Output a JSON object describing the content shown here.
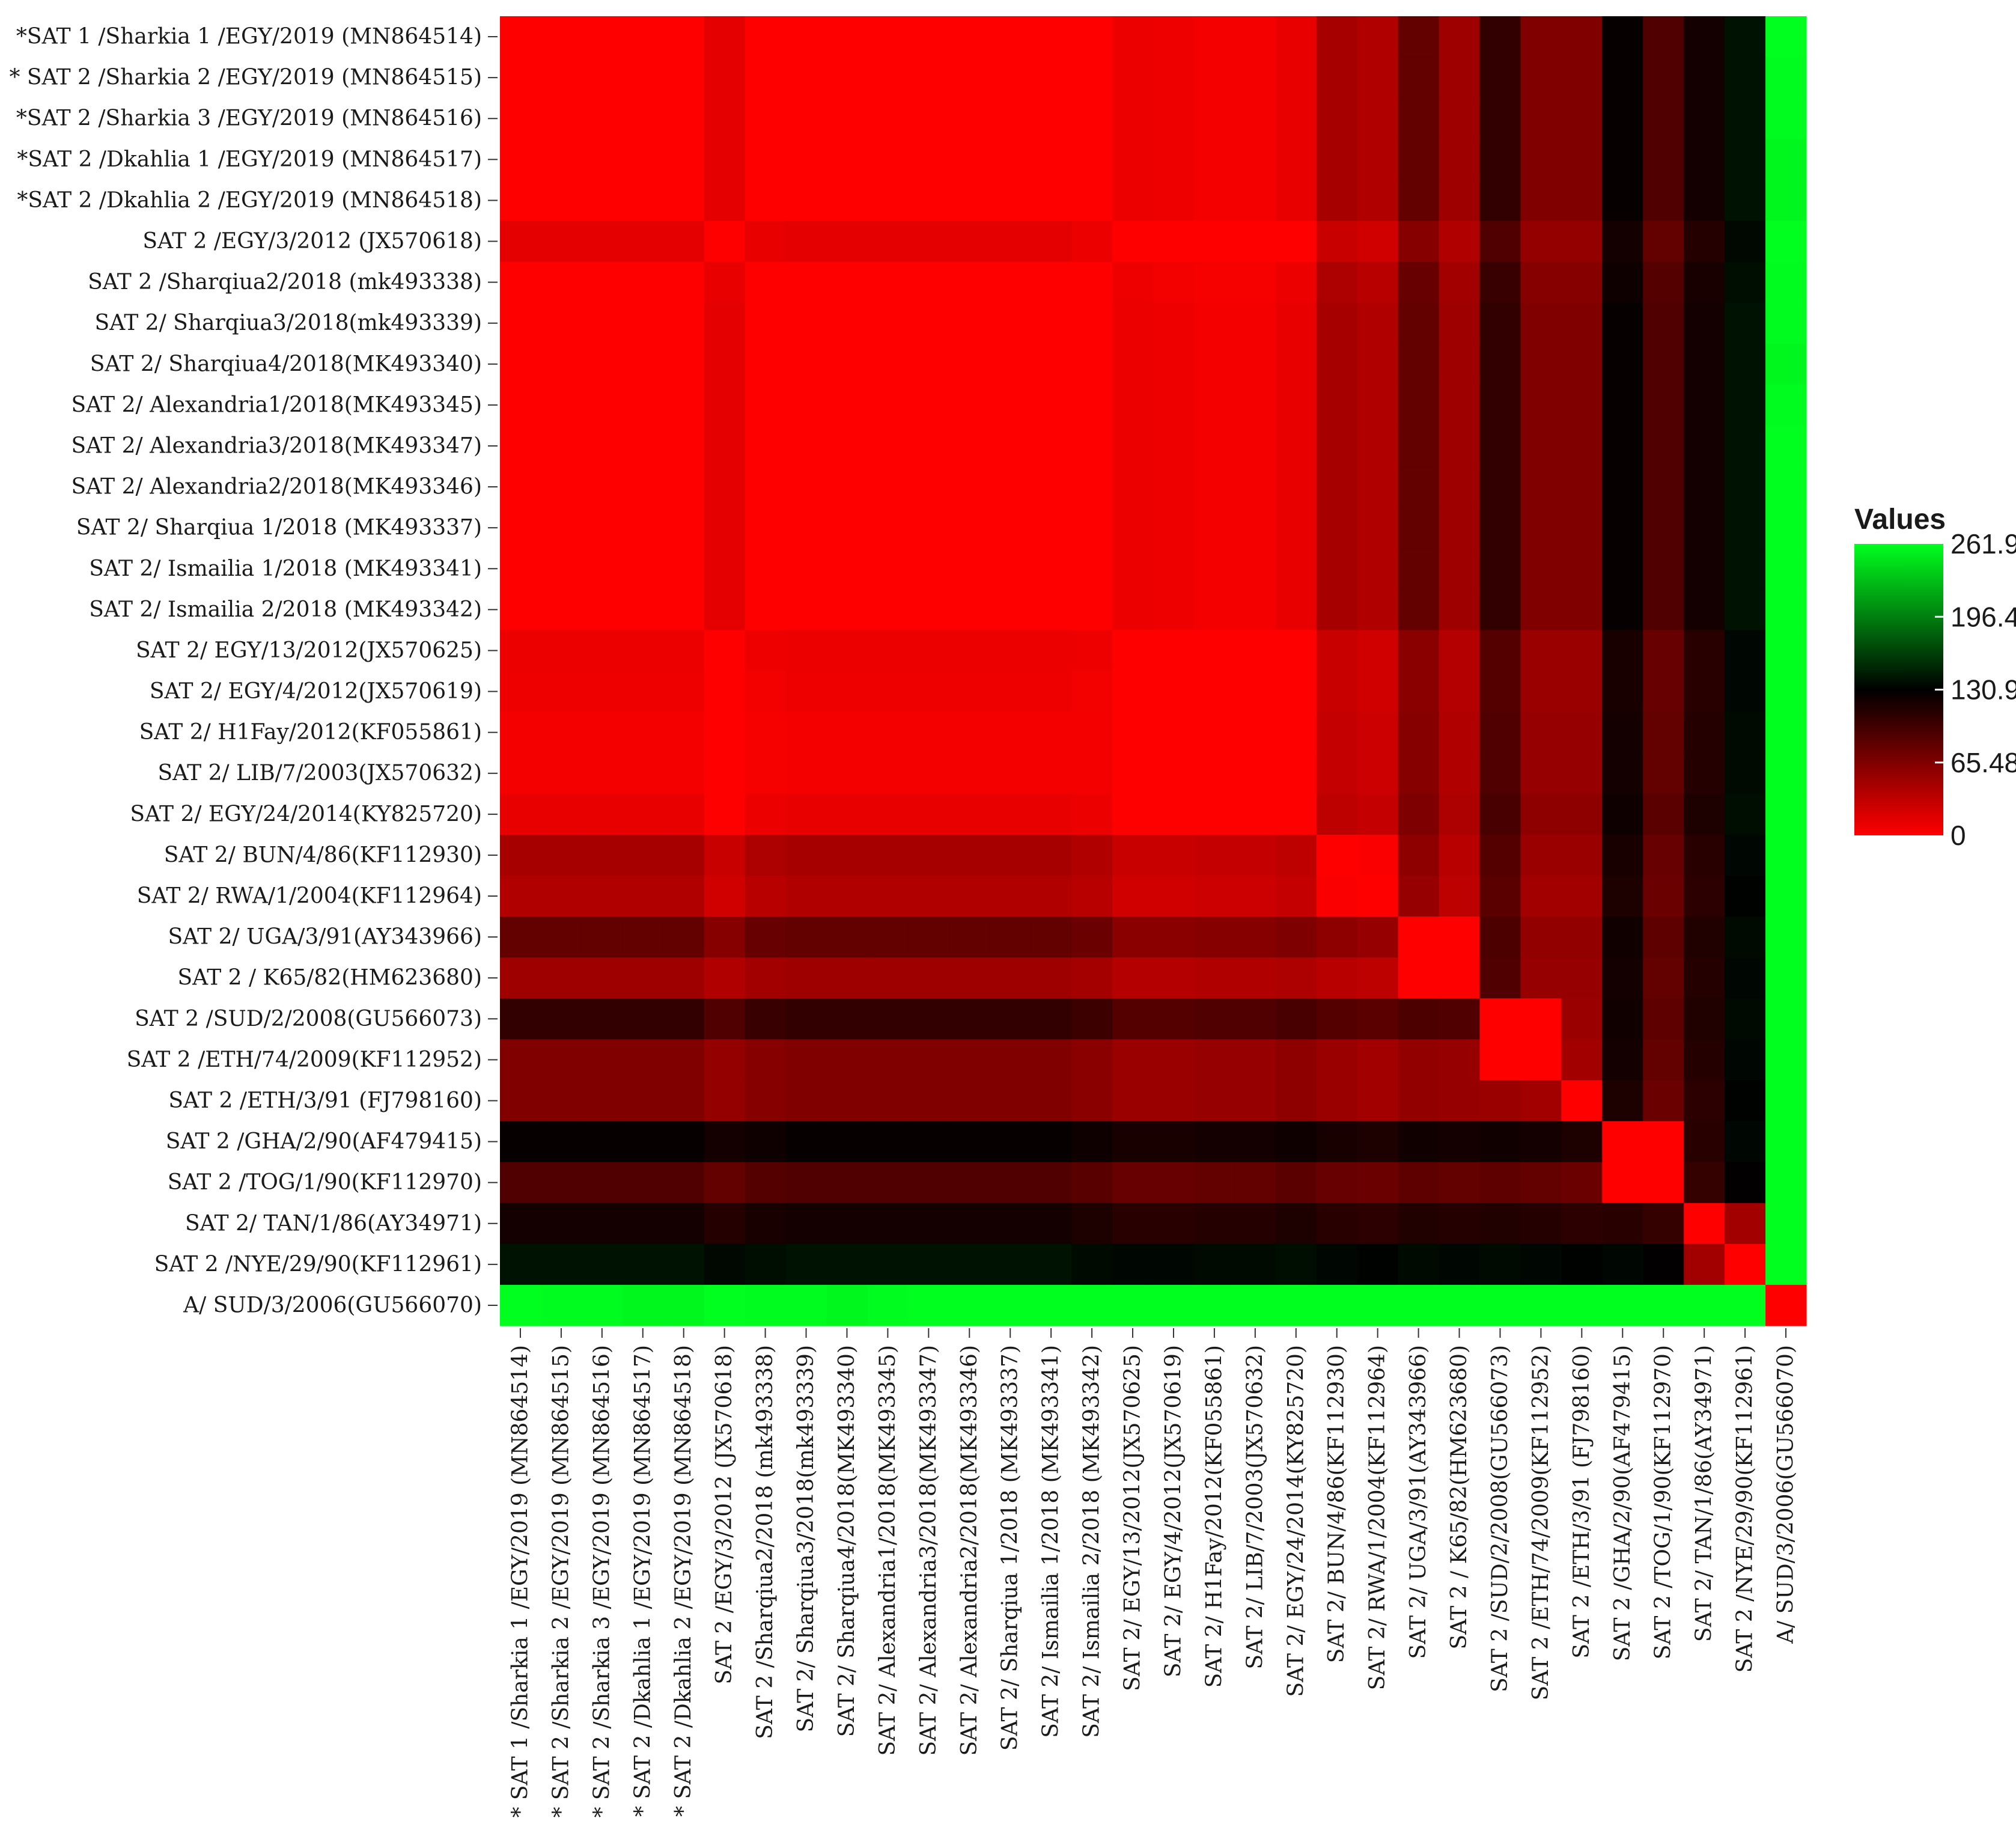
{
  "chart_data": {
    "type": "heatmap",
    "title": "",
    "xlabel": "",
    "ylabel": "",
    "labels": [
      "*SAT 1 /Sharkia 1 /EGY/2019 (MN864514)",
      "* SAT 2 /Sharkia 2 /EGY/2019 (MN864515)",
      "*SAT 2 /Sharkia 3 /EGY/2019 (MN864516)",
      "*SAT 2 /Dkahlia 1 /EGY/2019 (MN864517)",
      "*SAT 2 /Dkahlia 2 /EGY/2019 (MN864518)",
      "SAT 2 /EGY/3/2012 (JX570618)",
      "SAT 2 /Sharqiua2/2018 (mk493338)",
      "SAT 2/ Sharqiua3/2018(mk493339)",
      "SAT 2/ Sharqiua4/2018(MK493340)",
      "SAT 2/ Alexandria1/2018(MK493345)",
      "SAT 2/ Alexandria3/2018(MK493347)",
      "SAT 2/ Alexandria2/2018(MK493346)",
      "SAT 2/ Sharqiua 1/2018 (MK493337)",
      "SAT 2/ Ismailia 1/2018 (MK493341)",
      "SAT 2/ Ismailia 2/2018 (MK493342)",
      "SAT 2/ EGY/13/2012(JX570625)",
      "SAT 2/ EGY/4/2012(JX570619)",
      "SAT 2/ H1Fay/2012(KF055861)",
      "SAT 2/ LIB/7/2003(JX570632)",
      "SAT 2/ EGY/24/2014(KY825720)",
      "SAT 2/ BUN/4/86(KF112930)",
      "SAT 2/ RWA/1/2004(KF112964)",
      "SAT 2/ UGA/3/91(AY343966)",
      "SAT 2 / K65/82(HM623680)",
      "SAT 2 /SUD/2/2008(GU566073)",
      "SAT 2 /ETH/74/2009(KF112952)",
      "SAT 2 /ETH/3/91 (FJ798160)",
      "SAT 2 /GHA/2/90(AF479415)",
      "SAT 2 /TOG/1/90(KF112970)",
      "SAT 2/ TAN/1/86(AY34971)",
      "SAT 2 /NYE/29/90(KF112961)",
      "A/ SUD/3/2006(GU566070)"
    ],
    "col_labels": [
      "* SAT 1 /Sharkia 1 /EGY/2019 (MN864514)",
      "* SAT 2 /Sharkia 2 /EGY/2019 (MN864515)",
      "* SAT 2 /Sharkia 3 /EGY/2019 (MN864516)",
      "* SAT 2 /Dkahlia 1 /EGY/2019 (MN864517)",
      "* SAT 2 /Dkahlia 2 /EGY/2019 (MN864518)",
      "SAT 2 /EGY/3/2012 (JX570618)",
      "SAT 2 /Sharqiua2/2018 (mk493338)",
      "SAT 2/ Sharqiua3/2018(mk493339)",
      "SAT 2/ Sharqiua4/2018(MK493340)",
      "SAT 2/ Alexandria1/2018(MK493345)",
      "SAT 2/ Alexandria3/2018(MK493347)",
      "SAT 2/ Alexandria2/2018(MK493346)",
      "SAT 2/ Sharqiua 1/2018 (MK493337)",
      "SAT 2/ Ismailia 1/2018 (MK493341)",
      "SAT 2/ Ismailia 2/2018 (MK493342)",
      "SAT 2/ EGY/13/2012(JX570625)",
      "SAT 2/ EGY/4/2012(JX570619)",
      "SAT 2/ H1Fay/2012(KF055861)",
      "SAT 2/ LIB/7/2003(JX570632)",
      "SAT 2/ EGY/24/2014(KY825720)",
      "SAT 2/ BUN/4/86(KF112930)",
      "SAT 2/ RWA/1/2004(KF112964)",
      "SAT 2/ UGA/3/91(AY343966)",
      "SAT 2 / K65/82(HM623680)",
      "SAT 2 /SUD/2/2008(GU566073)",
      "SAT 2 /ETH/74/2009(KF112952)",
      "SAT 2 /ETH/3/91 (FJ798160)",
      "SAT 2 /GHA/2/90(AF479415)",
      "SAT 2 /TOG/1/90(KF112970)",
      "SAT 2/ TAN/1/86(AY34971)",
      "SAT 2 /NYE/29/90(KF112961)",
      "A/ SUD/3/2006(GU566070)"
    ],
    "values": [
      [
        0,
        0,
        0,
        0,
        0,
        14,
        0,
        0,
        0,
        0,
        0,
        0,
        0,
        0,
        0,
        10,
        8,
        5,
        5,
        12,
        45,
        40,
        80,
        50,
        105,
        65,
        65,
        128,
        90,
        120,
        140,
        262
      ],
      [
        0,
        0,
        0,
        0,
        0,
        14,
        0,
        0,
        0,
        0,
        0,
        0,
        0,
        0,
        0,
        10,
        8,
        5,
        5,
        12,
        45,
        40,
        80,
        50,
        105,
        65,
        65,
        128,
        90,
        120,
        140,
        260
      ],
      [
        0,
        0,
        0,
        0,
        0,
        14,
        0,
        0,
        0,
        0,
        0,
        0,
        0,
        0,
        0,
        10,
        8,
        5,
        5,
        12,
        45,
        40,
        80,
        50,
        105,
        65,
        65,
        128,
        90,
        120,
        140,
        260
      ],
      [
        0,
        0,
        0,
        0,
        0,
        14,
        0,
        0,
        0,
        0,
        0,
        0,
        0,
        0,
        0,
        10,
        8,
        5,
        5,
        12,
        45,
        40,
        80,
        50,
        105,
        65,
        65,
        128,
        90,
        120,
        140,
        258
      ],
      [
        0,
        0,
        0,
        0,
        0,
        14,
        0,
        0,
        0,
        0,
        0,
        0,
        0,
        0,
        0,
        10,
        8,
        5,
        5,
        12,
        45,
        40,
        80,
        50,
        105,
        65,
        65,
        128,
        90,
        120,
        140,
        258
      ],
      [
        14,
        14,
        14,
        14,
        14,
        0,
        12,
        14,
        14,
        14,
        14,
        14,
        14,
        14,
        10,
        0,
        0,
        0,
        0,
        0,
        28,
        24,
        62,
        40,
        90,
        55,
        55,
        120,
        80,
        112,
        135,
        262
      ],
      [
        0,
        0,
        0,
        0,
        0,
        12,
        0,
        0,
        0,
        0,
        0,
        0,
        0,
        0,
        0,
        8,
        6,
        4,
        4,
        10,
        42,
        36,
        78,
        48,
        102,
        62,
        62,
        124,
        88,
        118,
        138,
        260
      ],
      [
        0,
        0,
        0,
        0,
        0,
        14,
        0,
        0,
        0,
        0,
        0,
        0,
        0,
        0,
        0,
        10,
        8,
        5,
        5,
        12,
        45,
        40,
        80,
        50,
        105,
        65,
        65,
        128,
        90,
        120,
        140,
        260
      ],
      [
        0,
        0,
        0,
        0,
        0,
        14,
        0,
        0,
        0,
        0,
        0,
        0,
        0,
        0,
        0,
        10,
        8,
        5,
        5,
        12,
        45,
        40,
        80,
        50,
        105,
        65,
        65,
        128,
        90,
        120,
        140,
        258
      ],
      [
        0,
        0,
        0,
        0,
        0,
        14,
        0,
        0,
        0,
        0,
        0,
        0,
        0,
        0,
        0,
        10,
        8,
        5,
        5,
        12,
        45,
        40,
        80,
        50,
        105,
        65,
        65,
        128,
        90,
        120,
        140,
        260
      ],
      [
        0,
        0,
        0,
        0,
        0,
        14,
        0,
        0,
        0,
        0,
        0,
        0,
        0,
        0,
        0,
        10,
        8,
        5,
        5,
        12,
        45,
        40,
        80,
        50,
        105,
        65,
        65,
        128,
        90,
        120,
        140,
        262
      ],
      [
        0,
        0,
        0,
        0,
        0,
        14,
        0,
        0,
        0,
        0,
        0,
        0,
        0,
        0,
        0,
        10,
        8,
        5,
        5,
        12,
        45,
        40,
        80,
        50,
        105,
        65,
        65,
        128,
        90,
        120,
        140,
        262
      ],
      [
        0,
        0,
        0,
        0,
        0,
        14,
        0,
        0,
        0,
        0,
        0,
        0,
        0,
        0,
        0,
        10,
        8,
        5,
        5,
        12,
        45,
        40,
        80,
        50,
        105,
        65,
        65,
        128,
        90,
        120,
        140,
        262
      ],
      [
        0,
        0,
        0,
        0,
        0,
        14,
        0,
        0,
        0,
        0,
        0,
        0,
        0,
        0,
        0,
        10,
        8,
        5,
        5,
        12,
        45,
        40,
        80,
        50,
        105,
        65,
        65,
        128,
        90,
        120,
        140,
        262
      ],
      [
        0,
        0,
        0,
        0,
        0,
        14,
        0,
        0,
        0,
        0,
        0,
        0,
        0,
        0,
        0,
        10,
        8,
        5,
        5,
        12,
        45,
        40,
        80,
        50,
        105,
        65,
        65,
        128,
        90,
        120,
        140,
        262
      ],
      [
        10,
        10,
        10,
        10,
        10,
        0,
        8,
        10,
        10,
        10,
        10,
        10,
        10,
        10,
        8,
        0,
        0,
        0,
        0,
        0,
        28,
        24,
        60,
        38,
        88,
        52,
        52,
        118,
        78,
        110,
        134,
        262
      ],
      [
        8,
        8,
        8,
        8,
        8,
        0,
        6,
        8,
        8,
        8,
        8,
        8,
        8,
        8,
        6,
        0,
        0,
        0,
        0,
        0,
        28,
        24,
        60,
        38,
        88,
        52,
        52,
        118,
        78,
        110,
        134,
        262
      ],
      [
        5,
        5,
        5,
        5,
        5,
        0,
        4,
        5,
        5,
        5,
        5,
        5,
        5,
        5,
        5,
        0,
        0,
        0,
        0,
        0,
        30,
        26,
        62,
        40,
        90,
        54,
        54,
        120,
        80,
        112,
        136,
        262
      ],
      [
        5,
        5,
        5,
        5,
        5,
        0,
        4,
        5,
        5,
        5,
        5,
        5,
        5,
        5,
        5,
        0,
        0,
        0,
        0,
        0,
        30,
        26,
        62,
        40,
        90,
        54,
        54,
        120,
        80,
        112,
        136,
        262
      ],
      [
        12,
        12,
        12,
        12,
        12,
        0,
        10,
        12,
        12,
        12,
        12,
        12,
        12,
        12,
        10,
        0,
        0,
        0,
        0,
        0,
        34,
        30,
        66,
        42,
        94,
        58,
        58,
        124,
        84,
        116,
        138,
        262
      ],
      [
        45,
        45,
        45,
        45,
        45,
        28,
        42,
        45,
        45,
        45,
        45,
        45,
        45,
        45,
        40,
        28,
        28,
        30,
        30,
        34,
        0,
        2,
        58,
        36,
        88,
        52,
        52,
        118,
        78,
        110,
        134,
        262
      ],
      [
        40,
        40,
        40,
        40,
        40,
        24,
        36,
        40,
        40,
        40,
        40,
        40,
        40,
        40,
        36,
        24,
        24,
        26,
        26,
        30,
        2,
        0,
        54,
        34,
        84,
        48,
        48,
        116,
        76,
        108,
        132,
        262
      ],
      [
        80,
        80,
        80,
        80,
        80,
        62,
        78,
        80,
        80,
        80,
        80,
        80,
        80,
        80,
        76,
        60,
        60,
        62,
        62,
        66,
        58,
        54,
        0,
        0,
        92,
        56,
        56,
        122,
        82,
        114,
        136,
        262
      ],
      [
        50,
        50,
        50,
        50,
        50,
        40,
        48,
        50,
        50,
        50,
        50,
        50,
        50,
        50,
        46,
        38,
        38,
        40,
        40,
        42,
        36,
        34,
        0,
        0,
        90,
        54,
        54,
        120,
        80,
        112,
        134,
        262
      ],
      [
        105,
        105,
        105,
        105,
        105,
        90,
        102,
        105,
        105,
        105,
        105,
        105,
        105,
        105,
        100,
        88,
        88,
        90,
        90,
        94,
        88,
        84,
        92,
        90,
        0,
        0,
        52,
        122,
        82,
        114,
        136,
        262
      ],
      [
        65,
        65,
        65,
        65,
        65,
        55,
        62,
        65,
        65,
        65,
        65,
        65,
        65,
        65,
        60,
        52,
        52,
        54,
        54,
        58,
        52,
        48,
        56,
        54,
        0,
        0,
        48,
        120,
        80,
        112,
        134,
        262
      ],
      [
        65,
        65,
        65,
        65,
        65,
        55,
        62,
        65,
        65,
        65,
        65,
        65,
        65,
        65,
        60,
        52,
        52,
        54,
        54,
        58,
        52,
        48,
        56,
        54,
        52,
        48,
        0,
        116,
        76,
        108,
        132,
        262
      ],
      [
        128,
        128,
        128,
        128,
        128,
        120,
        124,
        128,
        128,
        128,
        128,
        128,
        128,
        128,
        124,
        118,
        118,
        120,
        120,
        124,
        118,
        116,
        122,
        120,
        122,
        120,
        116,
        0,
        0,
        110,
        134,
        262
      ],
      [
        90,
        90,
        90,
        90,
        90,
        80,
        88,
        90,
        90,
        90,
        90,
        90,
        90,
        90,
        86,
        78,
        78,
        80,
        80,
        84,
        78,
        76,
        82,
        80,
        82,
        80,
        76,
        0,
        0,
        104,
        130,
        262
      ],
      [
        120,
        120,
        120,
        120,
        120,
        112,
        118,
        120,
        120,
        120,
        120,
        120,
        120,
        120,
        116,
        110,
        110,
        112,
        112,
        116,
        110,
        108,
        114,
        112,
        114,
        112,
        108,
        110,
        104,
        0,
        48,
        262
      ],
      [
        140,
        140,
        140,
        140,
        140,
        135,
        138,
        140,
        140,
        140,
        140,
        140,
        140,
        140,
        136,
        134,
        134,
        136,
        136,
        138,
        134,
        132,
        136,
        134,
        136,
        134,
        132,
        134,
        130,
        48,
        0,
        262
      ],
      [
        262,
        260,
        260,
        258,
        258,
        262,
        260,
        260,
        258,
        260,
        262,
        262,
        262,
        262,
        262,
        262,
        262,
        262,
        262,
        262,
        262,
        262,
        262,
        262,
        262,
        262,
        262,
        262,
        262,
        262,
        262,
        0
      ]
    ],
    "value_range": [
      0,
      261.9
    ],
    "legend": {
      "title": "Values",
      "ticks": [
        "261.9",
        "196.4",
        "130.9",
        "65.48",
        "0"
      ],
      "placement": "right"
    },
    "colors": {
      "low": "#ff0000",
      "mid": "#000000",
      "high": "#00ff1e"
    }
  }
}
